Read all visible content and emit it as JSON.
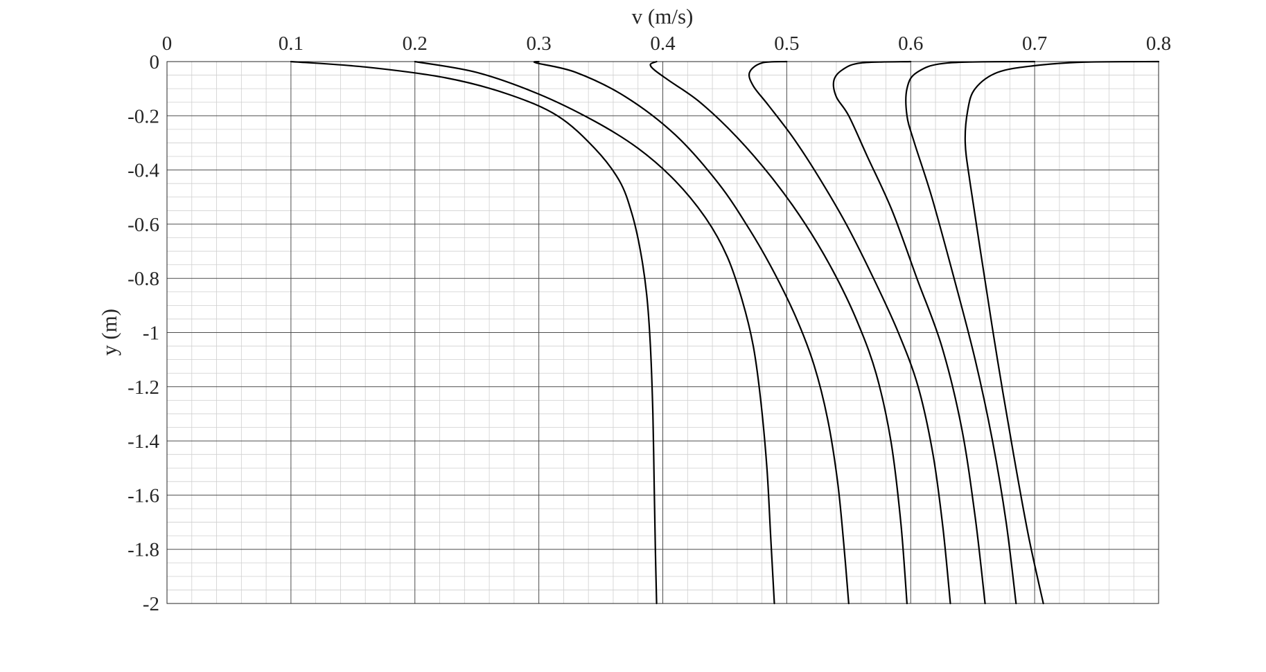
{
  "chart_data": {
    "type": "line",
    "title": "",
    "xlabel": "v (m/s)",
    "ylabel": "y (m)",
    "xaxis_position": "top",
    "xlim": [
      0,
      0.8
    ],
    "ylim": [
      -2,
      0
    ],
    "xticks": [
      0,
      0.1,
      0.2,
      0.3,
      0.4,
      0.5,
      0.6,
      0.7,
      0.8
    ],
    "xtick_labels": [
      "0",
      "0.1",
      "0.2",
      "0.3",
      "0.4",
      "0.5",
      "0.6",
      "0.7",
      "0.8"
    ],
    "yticks": [
      0,
      -0.2,
      -0.4,
      -0.6,
      -0.8,
      -1,
      -1.2,
      -1.4,
      -1.6,
      -1.8,
      -2
    ],
    "ytick_labels": [
      "0",
      "-0.2",
      "-0.4",
      "-0.6",
      "-0.8",
      "-1",
      "-1.2",
      "-1.4",
      "-1.6",
      "-1.8",
      "-2"
    ],
    "grid": "major and minor",
    "legend": "none",
    "colors": {
      "line": "#000000",
      "major_grid": "#4d4d4d",
      "minor_grid": "#cfcfcf",
      "text": "#262626"
    },
    "series": [
      {
        "x": [
          0.1,
          0.16,
          0.225,
          0.275,
          0.315,
          0.345,
          0.365,
          0.375,
          0.382,
          0.387,
          0.39,
          0.392,
          0.393,
          0.394,
          0.395
        ],
        "y": [
          0,
          -0.02,
          -0.06,
          -0.12,
          -0.2,
          -0.32,
          -0.44,
          -0.56,
          -0.7,
          -0.86,
          -1.05,
          -1.3,
          -1.55,
          -1.8,
          -2
        ]
      },
      {
        "x": [
          0.2,
          0.25,
          0.3,
          0.345,
          0.38,
          0.41,
          0.435,
          0.452,
          0.464,
          0.473,
          0.479,
          0.484,
          0.487,
          0.49
        ],
        "y": [
          0,
          -0.04,
          -0.12,
          -0.22,
          -0.32,
          -0.44,
          -0.58,
          -0.72,
          -0.88,
          -1.05,
          -1.25,
          -1.5,
          -1.75,
          -2
        ]
      },
      {
        "x": [
          0.3,
          0.298,
          0.33,
          0.37,
          0.41,
          0.445,
          0.47,
          0.49,
          0.508,
          0.522,
          0.533,
          0.541,
          0.546,
          0.55
        ],
        "y": [
          0,
          -0.005,
          -0.04,
          -0.13,
          -0.27,
          -0.45,
          -0.62,
          -0.78,
          -0.95,
          -1.12,
          -1.32,
          -1.55,
          -1.78,
          -2
        ]
      },
      {
        "x": [
          0.395,
          0.39,
          0.393,
          0.405,
          0.43,
          0.46,
          0.49,
          0.515,
          0.537,
          0.556,
          0.572,
          0.584,
          0.592,
          0.597
        ],
        "y": [
          0,
          -0.01,
          -0.03,
          -0.07,
          -0.15,
          -0.28,
          -0.44,
          -0.6,
          -0.77,
          -0.95,
          -1.15,
          -1.4,
          -1.7,
          -2
        ]
      },
      {
        "x": [
          0.5,
          0.48,
          0.47,
          0.473,
          0.485,
          0.505,
          0.525,
          0.548,
          0.57,
          0.59,
          0.606,
          0.618,
          0.626,
          0.632
        ],
        "y": [
          0,
          -0.005,
          -0.04,
          -0.09,
          -0.16,
          -0.28,
          -0.42,
          -0.6,
          -0.8,
          -1.0,
          -1.2,
          -1.45,
          -1.72,
          -2
        ]
      },
      {
        "x": [
          0.6,
          0.56,
          0.545,
          0.538,
          0.54,
          0.55,
          0.565,
          0.585,
          0.605,
          0.625,
          0.641,
          0.652,
          0.66
        ],
        "y": [
          0,
          -0.005,
          -0.03,
          -0.07,
          -0.13,
          -0.2,
          -0.35,
          -0.55,
          -0.8,
          -1.05,
          -1.35,
          -1.68,
          -2
        ]
      },
      {
        "x": [
          0.7,
          0.63,
          0.605,
          0.597,
          0.597,
          0.603,
          0.617,
          0.635,
          0.652,
          0.666,
          0.677,
          0.685
        ],
        "y": [
          0,
          -0.005,
          -0.04,
          -0.1,
          -0.2,
          -0.3,
          -0.5,
          -0.8,
          -1.1,
          -1.4,
          -1.7,
          -2
        ]
      },
      {
        "x": [
          0.8,
          0.74,
          0.7,
          0.67,
          0.652,
          0.646,
          0.644,
          0.648,
          0.658,
          0.67,
          0.683,
          0.695,
          0.707
        ],
        "y": [
          0,
          -0.002,
          -0.015,
          -0.04,
          -0.1,
          -0.18,
          -0.3,
          -0.45,
          -0.75,
          -1.1,
          -1.45,
          -1.75,
          -2
        ]
      }
    ]
  }
}
